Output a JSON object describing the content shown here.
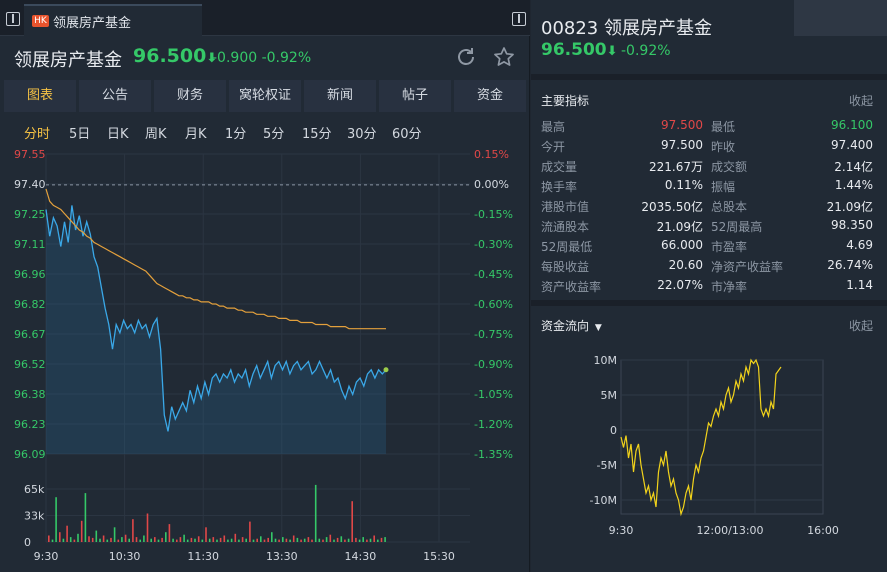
{
  "tab": {
    "badge": "HK",
    "title": "领展房产基金"
  },
  "header": {
    "name": "领展房产基金",
    "price": "96.500",
    "arrow": "⬇",
    "change": "-0.900",
    "change_pct": "-0.92%"
  },
  "nav_tabs": [
    "图表",
    "公告",
    "财务",
    "窝轮权证",
    "新闻",
    "帖子",
    "资金"
  ],
  "periods": [
    "分时",
    "5日",
    "日K",
    "周K",
    "月K",
    "1分",
    "5分",
    "15分",
    "30分",
    "60分"
  ],
  "chart_data": {
    "type": "line",
    "y_left_labels": [
      "97.55",
      "97.40",
      "97.25",
      "97.11",
      "96.96",
      "96.82",
      "96.67",
      "96.52",
      "96.38",
      "96.23",
      "96.09"
    ],
    "y_right_labels": [
      "0.15%",
      "0.00%",
      "-0.15%",
      "-0.30%",
      "-0.45%",
      "-0.60%",
      "-0.75%",
      "-0.90%",
      "-1.05%",
      "-1.20%",
      "-1.35%"
    ],
    "ylim": [
      96.09,
      97.55
    ],
    "prev_close": 97.4,
    "x_labels": [
      "9:30",
      "10:30",
      "11:30",
      "13:30",
      "14:30",
      "15:30"
    ],
    "volume_labels": [
      "65k",
      "33k",
      "0"
    ],
    "volume_max": 65000,
    "series": [
      {
        "values": [
          97.28,
          97.15,
          97.24,
          97.2,
          97.1,
          97.22,
          97.12,
          97.3,
          97.18,
          97.25,
          97.15,
          97.22,
          97.16,
          97.05,
          97.0,
          96.9,
          96.8,
          96.72,
          96.6,
          96.72,
          96.68,
          96.74,
          96.7,
          96.72,
          96.68,
          96.74,
          96.7,
          96.72,
          96.66,
          96.72,
          96.75,
          96.6,
          96.28,
          96.2,
          96.32,
          96.26,
          96.3,
          96.34,
          96.3,
          96.4,
          96.34,
          96.42,
          96.36,
          96.44,
          96.38,
          96.46,
          96.48,
          96.44,
          96.48,
          96.46,
          96.5,
          96.44,
          96.48,
          96.46,
          96.5,
          96.42,
          96.48,
          96.52,
          96.46,
          96.5,
          96.54,
          96.46,
          96.52,
          96.54,
          96.5,
          96.54,
          96.48,
          96.52,
          96.54,
          96.5,
          96.52,
          96.54,
          96.48,
          96.5,
          96.54,
          96.5,
          96.46,
          96.5,
          96.44,
          96.46,
          96.4,
          96.36,
          96.42,
          96.38,
          96.44,
          96.46,
          96.42,
          96.48,
          96.5,
          96.46,
          96.5,
          96.48,
          96.5
        ]
      },
      {
        "values": [
          97.38,
          97.32,
          97.3,
          97.29,
          97.28,
          97.26,
          97.24,
          97.22,
          97.2,
          97.18,
          97.17,
          97.15,
          97.14,
          97.12,
          97.11,
          97.1,
          97.09,
          97.08,
          97.07,
          97.06,
          97.05,
          97.04,
          97.03,
          97.02,
          97.01,
          97.0,
          96.99,
          96.98,
          96.96,
          96.94,
          96.92,
          96.91,
          96.9,
          96.89,
          96.88,
          96.87,
          96.86,
          96.86,
          96.85,
          96.85,
          96.84,
          96.84,
          96.83,
          96.83,
          96.83,
          96.82,
          96.82,
          96.81,
          96.81,
          96.8,
          96.8,
          96.8,
          96.79,
          96.79,
          96.78,
          96.78,
          96.78,
          96.77,
          96.77,
          96.77,
          96.76,
          96.76,
          96.76,
          96.75,
          96.75,
          96.75,
          96.74,
          96.74,
          96.74,
          96.73,
          96.73,
          96.73,
          96.73,
          96.72,
          96.72,
          96.72,
          96.72,
          96.71,
          96.71,
          96.71,
          96.71,
          96.71,
          96.7,
          96.7,
          96.7,
          96.7,
          96.7,
          96.7,
          96.7,
          96.7,
          96.7,
          96.7,
          96.7
        ]
      }
    ],
    "volumes": [
      8,
      3,
      55,
      12,
      4,
      20,
      6,
      3,
      10,
      26,
      60,
      7,
      5,
      14,
      4,
      8,
      3,
      5,
      18,
      3,
      6,
      9,
      4,
      28,
      6,
      3,
      8,
      35,
      4,
      6,
      3,
      5,
      12,
      22,
      4,
      3,
      6,
      9,
      3,
      5,
      4,
      7,
      3,
      18,
      4,
      6,
      3,
      5,
      8,
      3,
      4,
      10,
      3,
      6,
      4,
      25,
      3,
      4,
      7,
      3,
      5,
      12,
      4,
      3,
      6,
      4,
      3,
      8,
      5,
      3,
      4,
      6,
      3,
      70,
      4,
      3,
      6,
      9,
      3,
      5,
      7,
      3,
      4,
      50,
      5,
      3,
      6,
      3,
      4,
      8,
      3,
      5,
      6
    ],
    "volume_colors": [
      "#e04848",
      "#35c868",
      "#35c868",
      "#e04848",
      "#35c868",
      "#e04848",
      "#35c868",
      "#e04848",
      "#35c868",
      "#e04848",
      "#35c868",
      "#e04848"
    ]
  },
  "right": {
    "code_name": "00823 领展房产基金",
    "price": "96.500",
    "arrow": "⬇",
    "change_pct": "-0.92%",
    "indicators_title": "主要指标",
    "collapse": "收起",
    "indicators": [
      {
        "l1": "最高",
        "v1": "97.500",
        "c1": "#e04848",
        "l2": "最低",
        "v2": "96.100",
        "c2": "#35c868"
      },
      {
        "l1": "今开",
        "v1": "97.500",
        "c1": "#e8ebef",
        "l2": "昨收",
        "v2": "97.400",
        "c2": "#e8ebef"
      },
      {
        "l1": "成交量",
        "v1": "221.67万",
        "c1": "#e8ebef",
        "l2": "成交额",
        "v2": "2.14亿",
        "c2": "#e8ebef"
      },
      {
        "l1": "换手率",
        "v1": "0.11%",
        "c1": "#e8ebef",
        "l2": "振幅",
        "v2": "1.44%",
        "c2": "#e8ebef"
      },
      {
        "l1": "港股市值",
        "v1": "2035.50亿",
        "c1": "#e8ebef",
        "l2": "总股本",
        "v2": "21.09亿",
        "c2": "#e8ebef"
      },
      {
        "l1": "流通股本",
        "v1": "21.09亿",
        "c1": "#e8ebef",
        "l2": "52周最高",
        "v2": "98.350",
        "c2": "#e8ebef"
      },
      {
        "l1": "52周最低",
        "v1": "66.000",
        "c1": "#e8ebef",
        "l2": "市盈率",
        "v2": "4.69",
        "c2": "#e8ebef"
      },
      {
        "l1": "每股收益",
        "v1": "20.60",
        "c1": "#e8ebef",
        "l2": "净资产收益率",
        "v2": "26.74%",
        "c2": "#e8ebef"
      },
      {
        "l1": "资产收益率",
        "v1": "22.07%",
        "c1": "#e8ebef",
        "l2": "市净率",
        "v2": "1.14",
        "c2": "#e8ebef"
      }
    ],
    "flow_title": "资金流向",
    "flow_collapse": "收起",
    "flow_chart": {
      "type": "line",
      "y_labels": [
        "10M",
        "5M",
        "0",
        "-5M",
        "-10M"
      ],
      "ylim": [
        -12,
        10
      ],
      "x_labels": [
        "9:30",
        "12:00/13:00",
        "16:00"
      ],
      "values": [
        -1,
        -2.5,
        -0.8,
        -4,
        -2,
        -6,
        -3,
        -2,
        -5,
        -7,
        -9,
        -8,
        -10,
        -9,
        -11,
        -6,
        -4,
        -5,
        -3,
        -6,
        -8,
        -7,
        -9,
        -10,
        -12,
        -11,
        -9,
        -8,
        -10,
        -7,
        -5,
        -6,
        -4,
        -3,
        -1,
        1,
        0.5,
        2,
        3,
        2,
        4,
        3,
        5,
        6,
        4,
        5,
        7,
        6,
        8,
        7,
        9,
        8,
        10,
        9.5,
        10,
        9,
        3,
        2,
        3,
        2,
        4,
        3,
        8,
        8.5,
        9
      ]
    }
  }
}
